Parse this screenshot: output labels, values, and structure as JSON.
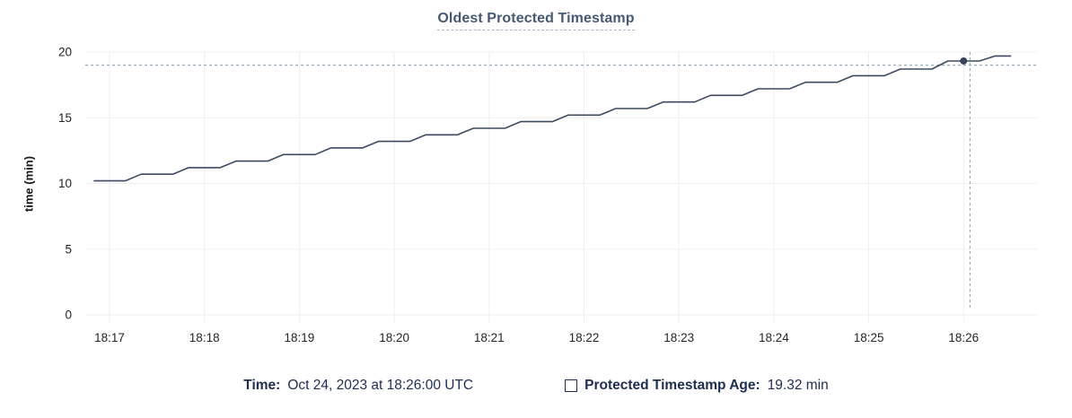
{
  "header": {
    "title": "Oldest Protected Timestamp"
  },
  "footer": {
    "time_label": "Time:",
    "time_value": "Oct 24, 2023 at 18:26:00 UTC",
    "series_label": "Protected Timestamp Age:",
    "series_value": "19.32 min"
  },
  "colors": {
    "background": "#ffffff",
    "title_text": "#475872",
    "title_underline": "#a9b7c9",
    "grid": "#efefef",
    "series_line": "#3d4b61",
    "hover_dot": "#36445c",
    "crosshair": "#9aacba",
    "axis_text": "#24262b",
    "legend_text": "#1e2d50"
  },
  "chart_data": {
    "type": "line",
    "title": "Oldest Protected Timestamp",
    "xlabel": "",
    "ylabel": "time (min)",
    "ylim": [
      0,
      20
    ],
    "y_ticks": [
      0,
      5,
      10,
      15,
      20
    ],
    "grid": "on",
    "legend_position": "bottom",
    "x_unit": "seconds from 18:17:00",
    "xlim_seconds": [
      -14,
      586
    ],
    "x_ticks": [
      {
        "label": "18:17",
        "t": 0
      },
      {
        "label": "18:18",
        "t": 60
      },
      {
        "label": "18:19",
        "t": 120
      },
      {
        "label": "18:20",
        "t": 180
      },
      {
        "label": "18:21",
        "t": 240
      },
      {
        "label": "18:22",
        "t": 300
      },
      {
        "label": "18:23",
        "t": 360
      },
      {
        "label": "18:24",
        "t": 420
      },
      {
        "label": "18:25",
        "t": 480
      },
      {
        "label": "18:26",
        "t": 540
      }
    ],
    "series": [
      {
        "name": "Protected Timestamp Age",
        "unit": "min",
        "points": [
          [
            -10,
            10.2
          ],
          [
            0,
            10.2
          ],
          [
            10,
            10.2
          ],
          [
            20,
            10.7
          ],
          [
            30,
            10.7
          ],
          [
            40,
            10.7
          ],
          [
            50,
            11.2
          ],
          [
            60,
            11.2
          ],
          [
            70,
            11.2
          ],
          [
            80,
            11.7
          ],
          [
            90,
            11.7
          ],
          [
            100,
            11.7
          ],
          [
            110,
            12.2
          ],
          [
            120,
            12.2
          ],
          [
            130,
            12.2
          ],
          [
            140,
            12.7
          ],
          [
            150,
            12.7
          ],
          [
            160,
            12.7
          ],
          [
            170,
            13.2
          ],
          [
            180,
            13.2
          ],
          [
            190,
            13.2
          ],
          [
            200,
            13.7
          ],
          [
            210,
            13.7
          ],
          [
            220,
            13.7
          ],
          [
            230,
            14.2
          ],
          [
            240,
            14.2
          ],
          [
            250,
            14.2
          ],
          [
            260,
            14.7
          ],
          [
            270,
            14.7
          ],
          [
            280,
            14.7
          ],
          [
            290,
            15.2
          ],
          [
            300,
            15.2
          ],
          [
            310,
            15.2
          ],
          [
            320,
            15.7
          ],
          [
            330,
            15.7
          ],
          [
            340,
            15.7
          ],
          [
            350,
            16.2
          ],
          [
            360,
            16.2
          ],
          [
            370,
            16.2
          ],
          [
            380,
            16.7
          ],
          [
            390,
            16.7
          ],
          [
            400,
            16.7
          ],
          [
            410,
            17.2
          ],
          [
            420,
            17.2
          ],
          [
            430,
            17.2
          ],
          [
            440,
            17.7
          ],
          [
            450,
            17.7
          ],
          [
            460,
            17.7
          ],
          [
            470,
            18.2
          ],
          [
            480,
            18.2
          ],
          [
            490,
            18.2
          ],
          [
            500,
            18.7
          ],
          [
            510,
            18.7
          ],
          [
            520,
            18.7
          ],
          [
            530,
            19.32
          ],
          [
            540,
            19.32
          ],
          [
            550,
            19.32
          ],
          [
            560,
            19.7
          ],
          [
            570,
            19.7
          ]
        ]
      }
    ],
    "hover": {
      "point": {
        "t_seconds": 540,
        "value_min": 19.32,
        "time_label": "18:26:00"
      },
      "crosshair": {
        "t_seconds": 544,
        "value_min": 19.0
      }
    }
  }
}
